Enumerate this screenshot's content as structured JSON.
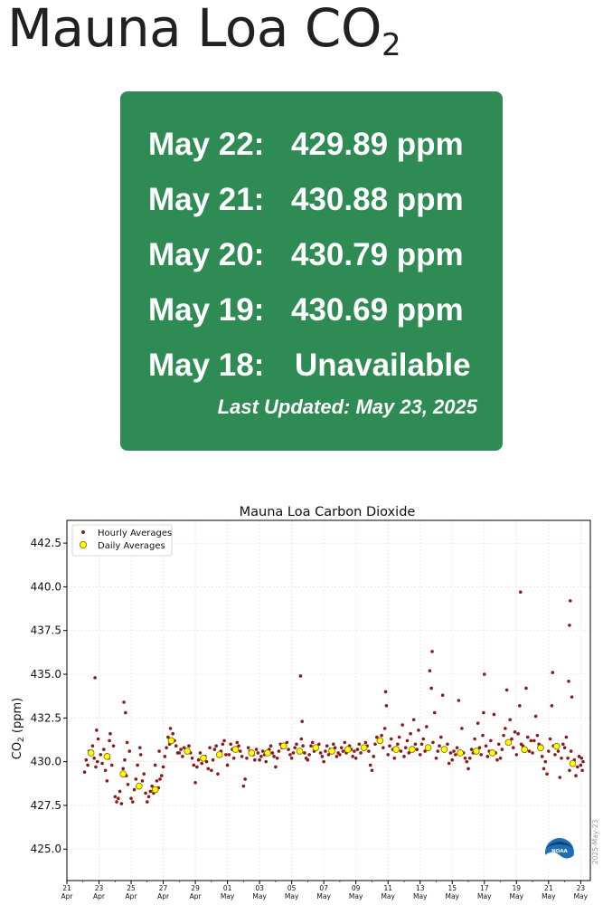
{
  "page": {
    "title_main": "Mauna Loa CO",
    "title_sub": "2"
  },
  "readings": [
    {
      "date": "May 22:",
      "value": "429.89 ppm"
    },
    {
      "date": "May 21:",
      "value": "430.88 ppm"
    },
    {
      "date": "May 20:",
      "value": "430.79 ppm"
    },
    {
      "date": "May 19:",
      "value": "430.69 ppm"
    },
    {
      "date": "May 18:",
      "value": "Unavailable"
    }
  ],
  "last_updated": "Last Updated: May 23, 2025",
  "chart_data": {
    "type": "scatter",
    "title": "Mauna Loa Carbon Dioxide",
    "ylabel_main": "CO",
    "ylabel_sub": "2",
    "ylabel_unit": " (ppm)",
    "xlim": [
      0,
      32.6
    ],
    "ylim": [
      423.2,
      443.8
    ],
    "y_ticks": [
      "425.0",
      "427.5",
      "430.0",
      "432.5",
      "435.0",
      "437.5",
      "440.0",
      "442.5"
    ],
    "y_tick_values": [
      425.0,
      427.5,
      430.0,
      432.5,
      435.0,
      437.5,
      440.0,
      442.5
    ],
    "x_ticks": [
      {
        "x": 0,
        "day": "21",
        "month": "Apr"
      },
      {
        "x": 2,
        "day": "23",
        "month": "Apr"
      },
      {
        "x": 4,
        "day": "25",
        "month": "Apr"
      },
      {
        "x": 6,
        "day": "27",
        "month": "Apr"
      },
      {
        "x": 8,
        "day": "29",
        "month": "Apr"
      },
      {
        "x": 10,
        "day": "01",
        "month": "May"
      },
      {
        "x": 12,
        "day": "03",
        "month": "May"
      },
      {
        "x": 14,
        "day": "05",
        "month": "May"
      },
      {
        "x": 16,
        "day": "07",
        "month": "May"
      },
      {
        "x": 18,
        "day": "09",
        "month": "May"
      },
      {
        "x": 20,
        "day": "11",
        "month": "May"
      },
      {
        "x": 22,
        "day": "13",
        "month": "May"
      },
      {
        "x": 24,
        "day": "15",
        "month": "May"
      },
      {
        "x": 26,
        "day": "17",
        "month": "May"
      },
      {
        "x": 28,
        "day": "19",
        "month": "May"
      },
      {
        "x": 30,
        "day": "21",
        "month": "May"
      },
      {
        "x": 32,
        "day": "23",
        "month": "May"
      }
    ],
    "legend": {
      "position": "top-left",
      "entries": [
        "Hourly Averages",
        "Daily Averages"
      ]
    },
    "grid": true,
    "watermark": "2025-May-23",
    "logo": "NOAA",
    "colors": {
      "hourly": "#8b1a1a",
      "daily_fill": "#ffff00",
      "daily_edge": "#806600"
    },
    "daily_averages": [
      [
        1.5,
        430.5
      ],
      [
        2.5,
        430.3
      ],
      [
        3.5,
        429.3
      ],
      [
        4.5,
        428.6
      ],
      [
        5.5,
        428.4
      ],
      [
        6.5,
        431.2
      ],
      [
        7.5,
        430.6
      ],
      [
        8.5,
        430.2
      ],
      [
        9.5,
        430.4
      ],
      [
        10.5,
        430.7
      ],
      [
        11.5,
        430.5
      ],
      [
        12.5,
        430.5
      ],
      [
        13.5,
        430.9
      ],
      [
        14.5,
        430.6
      ],
      [
        15.5,
        430.8
      ],
      [
        16.5,
        430.6
      ],
      [
        17.5,
        430.7
      ],
      [
        18.5,
        430.8
      ],
      [
        19.5,
        431.2
      ],
      [
        20.5,
        430.7
      ],
      [
        21.5,
        430.7
      ],
      [
        22.5,
        430.8
      ],
      [
        23.5,
        430.7
      ],
      [
        24.5,
        430.5
      ],
      [
        25.5,
        430.6
      ],
      [
        26.5,
        430.5
      ],
      [
        27.5,
        431.1
      ],
      [
        28.5,
        430.69
      ],
      [
        29.5,
        430.79
      ],
      [
        30.5,
        430.88
      ],
      [
        31.5,
        429.89
      ]
    ],
    "hourly_averages": [
      [
        1.1,
        429.4
      ],
      [
        1.2,
        430.1
      ],
      [
        1.3,
        429.8
      ],
      [
        1.4,
        430.6
      ],
      [
        1.6,
        430.9
      ],
      [
        1.7,
        430.2
      ],
      [
        1.8,
        429.7
      ],
      [
        1.9,
        430.0
      ],
      [
        1.75,
        434.8
      ],
      [
        1.85,
        431.8
      ],
      [
        1.95,
        431.3
      ],
      [
        2.1,
        430.4
      ],
      [
        2.2,
        429.9
      ],
      [
        2.3,
        430.7
      ],
      [
        2.4,
        429.5
      ],
      [
        2.6,
        430.2
      ],
      [
        2.7,
        431.6
      ],
      [
        2.8,
        429.8
      ],
      [
        2.9,
        430.9
      ],
      [
        2.5,
        428.9
      ],
      [
        2.65,
        431.2
      ],
      [
        3.0,
        428.0
      ],
      [
        3.1,
        427.7
      ],
      [
        3.2,
        427.9
      ],
      [
        3.3,
        428.3
      ],
      [
        3.4,
        427.6
      ],
      [
        3.5,
        429.6
      ],
      [
        3.6,
        430.1
      ],
      [
        3.7,
        429.2
      ],
      [
        3.8,
        428.7
      ],
      [
        3.9,
        430.6
      ],
      [
        3.55,
        433.4
      ],
      [
        3.65,
        432.8
      ],
      [
        3.75,
        431.1
      ],
      [
        4.0,
        427.9
      ],
      [
        4.1,
        427.7
      ],
      [
        4.2,
        428.4
      ],
      [
        4.3,
        429.0
      ],
      [
        4.4,
        429.8
      ],
      [
        4.6,
        430.4
      ],
      [
        4.7,
        428.9
      ],
      [
        4.8,
        429.3
      ],
      [
        4.9,
        428.2
      ],
      [
        4.55,
        430.8
      ],
      [
        5.0,
        427.7
      ],
      [
        5.1,
        428.0
      ],
      [
        5.2,
        428.3
      ],
      [
        5.3,
        428.6
      ],
      [
        5.4,
        428.2
      ],
      [
        5.6,
        428.9
      ],
      [
        5.7,
        428.5
      ],
      [
        5.8,
        429.0
      ],
      [
        5.9,
        429.2
      ],
      [
        5.5,
        429.8
      ],
      [
        5.75,
        430.6
      ],
      [
        6.0,
        429.7
      ],
      [
        6.1,
        430.3
      ],
      [
        6.2,
        430.8
      ],
      [
        6.3,
        431.4
      ],
      [
        6.4,
        431.0
      ],
      [
        6.6,
        431.6
      ],
      [
        6.7,
        431.2
      ],
      [
        6.8,
        430.9
      ],
      [
        6.9,
        430.5
      ],
      [
        6.45,
        431.9
      ],
      [
        7.0,
        430.5
      ],
      [
        7.1,
        430.7
      ],
      [
        7.2,
        430.3
      ],
      [
        7.3,
        430.8
      ],
      [
        7.4,
        430.6
      ],
      [
        7.6,
        430.9
      ],
      [
        7.7,
        430.5
      ],
      [
        7.8,
        430.2
      ],
      [
        7.9,
        429.8
      ],
      [
        8.0,
        428.8
      ],
      [
        8.1,
        429.7
      ],
      [
        8.2,
        430.1
      ],
      [
        8.3,
        430.5
      ],
      [
        8.4,
        429.9
      ],
      [
        8.6,
        430.3
      ],
      [
        8.7,
        430.0
      ],
      [
        8.8,
        429.6
      ],
      [
        8.9,
        430.8
      ],
      [
        9.0,
        429.5
      ],
      [
        9.1,
        430.1
      ],
      [
        9.2,
        430.7
      ],
      [
        9.3,
        430.9
      ],
      [
        9.4,
        429.3
      ],
      [
        9.6,
        430.6
      ],
      [
        9.7,
        431.0
      ],
      [
        9.8,
        431.2
      ],
      [
        9.9,
        430.4
      ],
      [
        10.0,
        429.8
      ],
      [
        10.1,
        430.4
      ],
      [
        10.2,
        431.0
      ],
      [
        10.3,
        430.7
      ],
      [
        10.4,
        430.2
      ],
      [
        10.6,
        431.1
      ],
      [
        10.7,
        430.9
      ],
      [
        10.8,
        430.6
      ],
      [
        10.9,
        430.3
      ],
      [
        11.0,
        428.6
      ],
      [
        11.1,
        429.0
      ],
      [
        11.2,
        430.2
      ],
      [
        11.3,
        430.8
      ],
      [
        11.4,
        430.6
      ],
      [
        11.6,
        430.4
      ],
      [
        11.7,
        430.1
      ],
      [
        11.8,
        430.7
      ],
      [
        11.9,
        430.5
      ],
      [
        12.0,
        430.1
      ],
      [
        12.1,
        430.3
      ],
      [
        12.2,
        430.6
      ],
      [
        12.3,
        430.4
      ],
      [
        12.4,
        430.0
      ],
      [
        12.6,
        430.7
      ],
      [
        12.7,
        430.9
      ],
      [
        12.8,
        430.5
      ],
      [
        12.9,
        430.3
      ],
      [
        13.0,
        429.7
      ],
      [
        13.1,
        430.2
      ],
      [
        13.2,
        430.6
      ],
      [
        13.3,
        431.0
      ],
      [
        13.4,
        430.8
      ],
      [
        13.6,
        430.9
      ],
      [
        13.7,
        431.1
      ],
      [
        13.8,
        430.7
      ],
      [
        13.9,
        430.4
      ],
      [
        14.0,
        430.2
      ],
      [
        14.1,
        430.5
      ],
      [
        14.2,
        430.8
      ],
      [
        14.3,
        431.0
      ],
      [
        14.4,
        430.6
      ],
      [
        14.6,
        431.3
      ],
      [
        14.7,
        430.9
      ],
      [
        14.8,
        430.5
      ],
      [
        14.9,
        430.2
      ],
      [
        14.55,
        434.9
      ],
      [
        14.65,
        432.3
      ],
      [
        15.0,
        430.1
      ],
      [
        15.1,
        430.4
      ],
      [
        15.2,
        430.9
      ],
      [
        15.3,
        431.1
      ],
      [
        15.4,
        430.6
      ],
      [
        15.6,
        430.8
      ],
      [
        15.7,
        431.0
      ],
      [
        15.8,
        430.5
      ],
      [
        15.9,
        430.3
      ],
      [
        16.0,
        430.0
      ],
      [
        16.1,
        430.6
      ],
      [
        16.2,
        430.9
      ],
      [
        16.3,
        430.4
      ],
      [
        16.4,
        430.7
      ],
      [
        16.6,
        431.0
      ],
      [
        16.7,
        430.8
      ],
      [
        16.8,
        430.3
      ],
      [
        16.9,
        430.5
      ],
      [
        17.0,
        430.4
      ],
      [
        17.1,
        430.8
      ],
      [
        17.2,
        430.6
      ],
      [
        17.3,
        431.1
      ],
      [
        17.4,
        430.5
      ],
      [
        17.6,
        430.9
      ],
      [
        17.7,
        430.7
      ],
      [
        17.8,
        430.3
      ],
      [
        17.9,
        430.6
      ],
      [
        18.0,
        430.2
      ],
      [
        18.1,
        430.7
      ],
      [
        18.2,
        431.0
      ],
      [
        18.3,
        430.5
      ],
      [
        18.4,
        430.8
      ],
      [
        18.6,
        431.1
      ],
      [
        18.7,
        430.9
      ],
      [
        18.8,
        430.6
      ],
      [
        18.9,
        429.8
      ],
      [
        19.0,
        429.5
      ],
      [
        19.1,
        430.3
      ],
      [
        19.2,
        431.0
      ],
      [
        19.3,
        431.4
      ],
      [
        19.4,
        431.2
      ],
      [
        19.6,
        431.5
      ],
      [
        19.7,
        430.8
      ],
      [
        19.8,
        431.9
      ],
      [
        19.9,
        433.2
      ],
      [
        19.85,
        434.0
      ],
      [
        20.0,
        430.4
      ],
      [
        20.1,
        430.9
      ],
      [
        20.2,
        431.3
      ],
      [
        20.3,
        430.7
      ],
      [
        20.4,
        430.2
      ],
      [
        20.6,
        431.0
      ],
      [
        20.7,
        431.4
      ],
      [
        20.8,
        430.6
      ],
      [
        20.9,
        432.1
      ],
      [
        21.0,
        430.3
      ],
      [
        21.1,
        430.8
      ],
      [
        21.2,
        431.2
      ],
      [
        21.3,
        430.5
      ],
      [
        21.4,
        431.6
      ],
      [
        21.6,
        432.4
      ],
      [
        21.7,
        431.0
      ],
      [
        21.8,
        430.7
      ],
      [
        21.9,
        431.8
      ],
      [
        22.0,
        430.4
      ],
      [
        22.1,
        431.0
      ],
      [
        22.2,
        431.3
      ],
      [
        22.3,
        430.6
      ],
      [
        22.4,
        432.0
      ],
      [
        22.6,
        435.2
      ],
      [
        22.7,
        434.2
      ],
      [
        22.75,
        436.3
      ],
      [
        22.8,
        431.1
      ],
      [
        22.9,
        432.8
      ],
      [
        23.0,
        430.2
      ],
      [
        23.1,
        430.6
      ],
      [
        23.2,
        430.9
      ],
      [
        23.3,
        431.4
      ],
      [
        23.4,
        433.8
      ],
      [
        23.6,
        430.7
      ],
      [
        23.7,
        431.0
      ],
      [
        23.8,
        429.9
      ],
      [
        23.9,
        430.5
      ],
      [
        24.0,
        430.1
      ],
      [
        24.1,
        430.6
      ],
      [
        24.2,
        430.4
      ],
      [
        24.3,
        430.8
      ],
      [
        24.4,
        433.5
      ],
      [
        24.6,
        431.9
      ],
      [
        24.7,
        430.5
      ],
      [
        24.8,
        430.2
      ],
      [
        24.9,
        430.0
      ],
      [
        25.0,
        429.6
      ],
      [
        25.1,
        430.2
      ],
      [
        25.2,
        430.7
      ],
      [
        25.3,
        430.5
      ],
      [
        25.4,
        431.3
      ],
      [
        25.6,
        432.2
      ],
      [
        25.7,
        430.8
      ],
      [
        25.8,
        430.4
      ],
      [
        25.9,
        431.5
      ],
      [
        25.95,
        432.8
      ],
      [
        26.0,
        435.0
      ],
      [
        26.1,
        430.9
      ],
      [
        26.2,
        430.3
      ],
      [
        26.3,
        430.6
      ],
      [
        26.4,
        431.2
      ],
      [
        26.6,
        432.7
      ],
      [
        26.7,
        430.5
      ],
      [
        26.8,
        430.1
      ],
      [
        26.9,
        431.0
      ],
      [
        27.0,
        430.2
      ],
      [
        27.1,
        430.7
      ],
      [
        27.2,
        431.5
      ],
      [
        27.3,
        431.9
      ],
      [
        27.4,
        434.1
      ],
      [
        27.6,
        432.4
      ],
      [
        27.7,
        431.3
      ],
      [
        27.8,
        430.8
      ],
      [
        27.9,
        431.7
      ],
      [
        28.0,
        430.4
      ],
      [
        28.1,
        431.6
      ],
      [
        28.2,
        433.2
      ],
      [
        28.25,
        439.7
      ],
      [
        28.3,
        431.0
      ],
      [
        28.4,
        430.9
      ],
      [
        28.6,
        434.2
      ],
      [
        28.7,
        431.4
      ],
      [
        28.8,
        430.6
      ],
      [
        28.9,
        431.2
      ],
      [
        29.0,
        430.5
      ],
      [
        29.1,
        431.2
      ],
      [
        29.2,
        432.6
      ],
      [
        29.3,
        431.5
      ],
      [
        29.4,
        431.0
      ],
      [
        29.6,
        430.3
      ],
      [
        29.7,
        429.6
      ],
      [
        29.8,
        430.0
      ],
      [
        29.9,
        429.3
      ],
      [
        29.55,
        430.9
      ],
      [
        30.0,
        430.6
      ],
      [
        30.1,
        431.3
      ],
      [
        30.2,
        433.2
      ],
      [
        30.25,
        435.1
      ],
      [
        30.3,
        430.9
      ],
      [
        30.4,
        430.4
      ],
      [
        30.6,
        430.6
      ],
      [
        30.7,
        429.1
      ],
      [
        30.8,
        430.2
      ],
      [
        30.9,
        431.0
      ],
      [
        31.0,
        430.8
      ],
      [
        31.1,
        431.4
      ],
      [
        31.2,
        430.2
      ],
      [
        31.3,
        429.5
      ],
      [
        31.4,
        430.6
      ],
      [
        31.6,
        430.1
      ],
      [
        31.7,
        429.2
      ],
      [
        31.8,
        429.7
      ],
      [
        31.9,
        430.3
      ],
      [
        32.0,
        429.8
      ],
      [
        32.05,
        430.2
      ],
      [
        32.1,
        429.5
      ],
      [
        32.15,
        430.0
      ],
      [
        31.25,
        434.6
      ],
      [
        31.3,
        437.8
      ],
      [
        31.35,
        439.2
      ],
      [
        31.45,
        433.7
      ]
    ]
  }
}
